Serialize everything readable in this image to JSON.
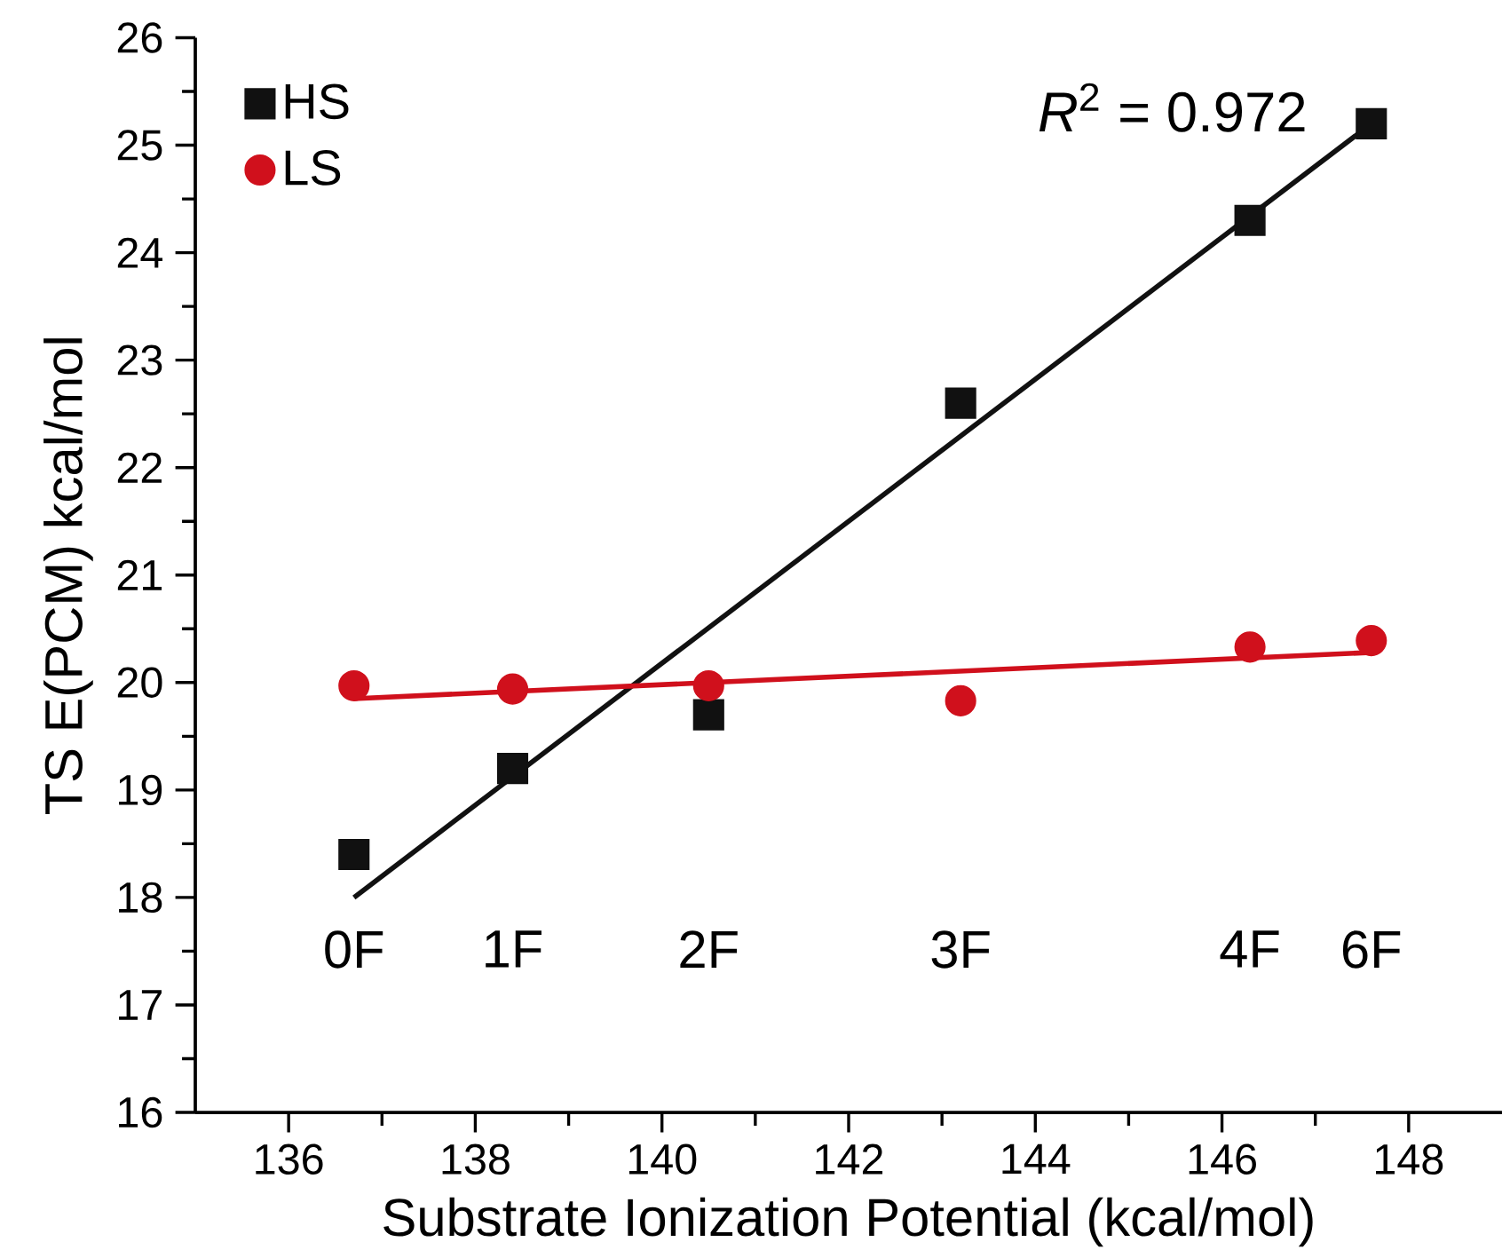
{
  "chart_data": {
    "type": "scatter",
    "xlabel": "Substrate Ionization Potential (kcal/mol)",
    "ylabel": "TS E(PCM) kcal/mol",
    "xlim": [
      135,
      149
    ],
    "xticks": [
      136,
      138,
      140,
      142,
      144,
      146,
      148
    ],
    "ylim": [
      16,
      26
    ],
    "yticks": [
      16,
      17,
      18,
      19,
      20,
      21,
      22,
      23,
      24,
      25,
      26
    ],
    "legend": "top left",
    "grid": false,
    "series": [
      {
        "name": "HS",
        "color": "#111111",
        "marker": "square",
        "x": [
          136.7,
          138.4,
          140.5,
          143.2,
          146.3,
          147.6
        ],
        "values": [
          18.4,
          19.2,
          19.7,
          22.6,
          24.3,
          25.2
        ]
      },
      {
        "name": "LS",
        "color": "#d0101c",
        "marker": "circle",
        "x": [
          136.7,
          138.4,
          140.5,
          143.2,
          146.3,
          147.6
        ],
        "values": [
          19.97,
          19.94,
          19.97,
          19.83,
          20.33,
          20.39
        ]
      },
      {
        "type": "line",
        "color": "#111111",
        "marker": "none",
        "x": [
          136.7,
          147.6
        ],
        "values": [
          18.0,
          25.2
        ]
      },
      {
        "type": "line",
        "color": "#d0101c",
        "marker": "none",
        "x": [
          136.7,
          147.6
        ],
        "values": [
          19.85,
          20.28
        ]
      }
    ],
    "annotations": [
      "0F",
      "1F",
      "2F",
      "3F",
      "4F",
      "6F",
      "*R*$^{2}$ = 0.972"
    ]
  }
}
